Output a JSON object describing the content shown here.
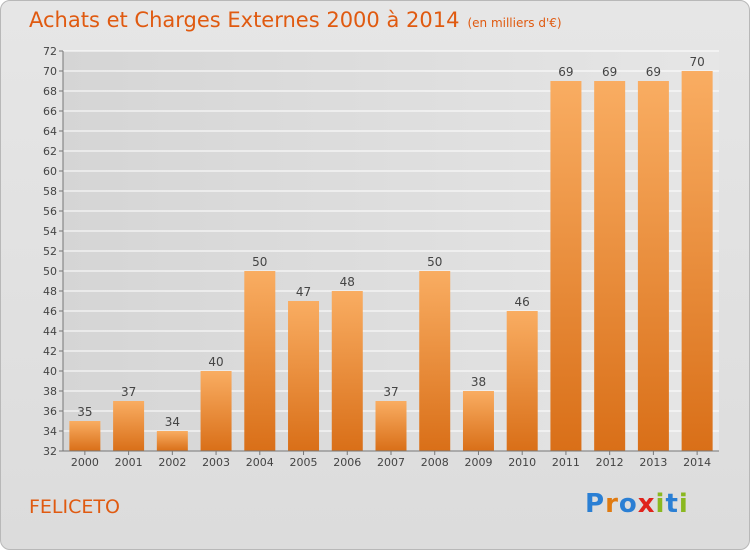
{
  "header": {
    "title": "Achats et Charges Externes 2000 à 2014",
    "unit": "(en milliers d'€)"
  },
  "footer": {
    "place": "FELICETO",
    "logo_text": "Proxiti",
    "logo_colors": [
      "#2a7fd4",
      "#e07a10",
      "#2a7fd4",
      "#e0231c",
      "#8ab820",
      "#2a7fd4",
      "#8ab820"
    ]
  },
  "colors": {
    "title": "#e05a10",
    "bar_light": "#f9ad62",
    "bar_dark": "#d96f18",
    "grid": "#ffffff",
    "axis": "#777777"
  },
  "chart_data": {
    "type": "bar",
    "categories": [
      "2000",
      "2001",
      "2002",
      "2003",
      "2004",
      "2005",
      "2006",
      "2007",
      "2008",
      "2009",
      "2010",
      "2011",
      "2012",
      "2013",
      "2014"
    ],
    "values": [
      35,
      37,
      34,
      40,
      50,
      47,
      48,
      37,
      50,
      38,
      46,
      69,
      69,
      69,
      70
    ],
    "title": "Achats et Charges Externes 2000 à 2014",
    "subtitle": "(en milliers d'€)",
    "xlabel": "",
    "ylabel": "",
    "ylim": [
      32,
      72
    ],
    "yticks": [
      32,
      34,
      36,
      38,
      40,
      42,
      44,
      46,
      48,
      50,
      52,
      54,
      56,
      58,
      60,
      62,
      64,
      66,
      68,
      70,
      72
    ],
    "grid": true,
    "data_labels": true
  }
}
